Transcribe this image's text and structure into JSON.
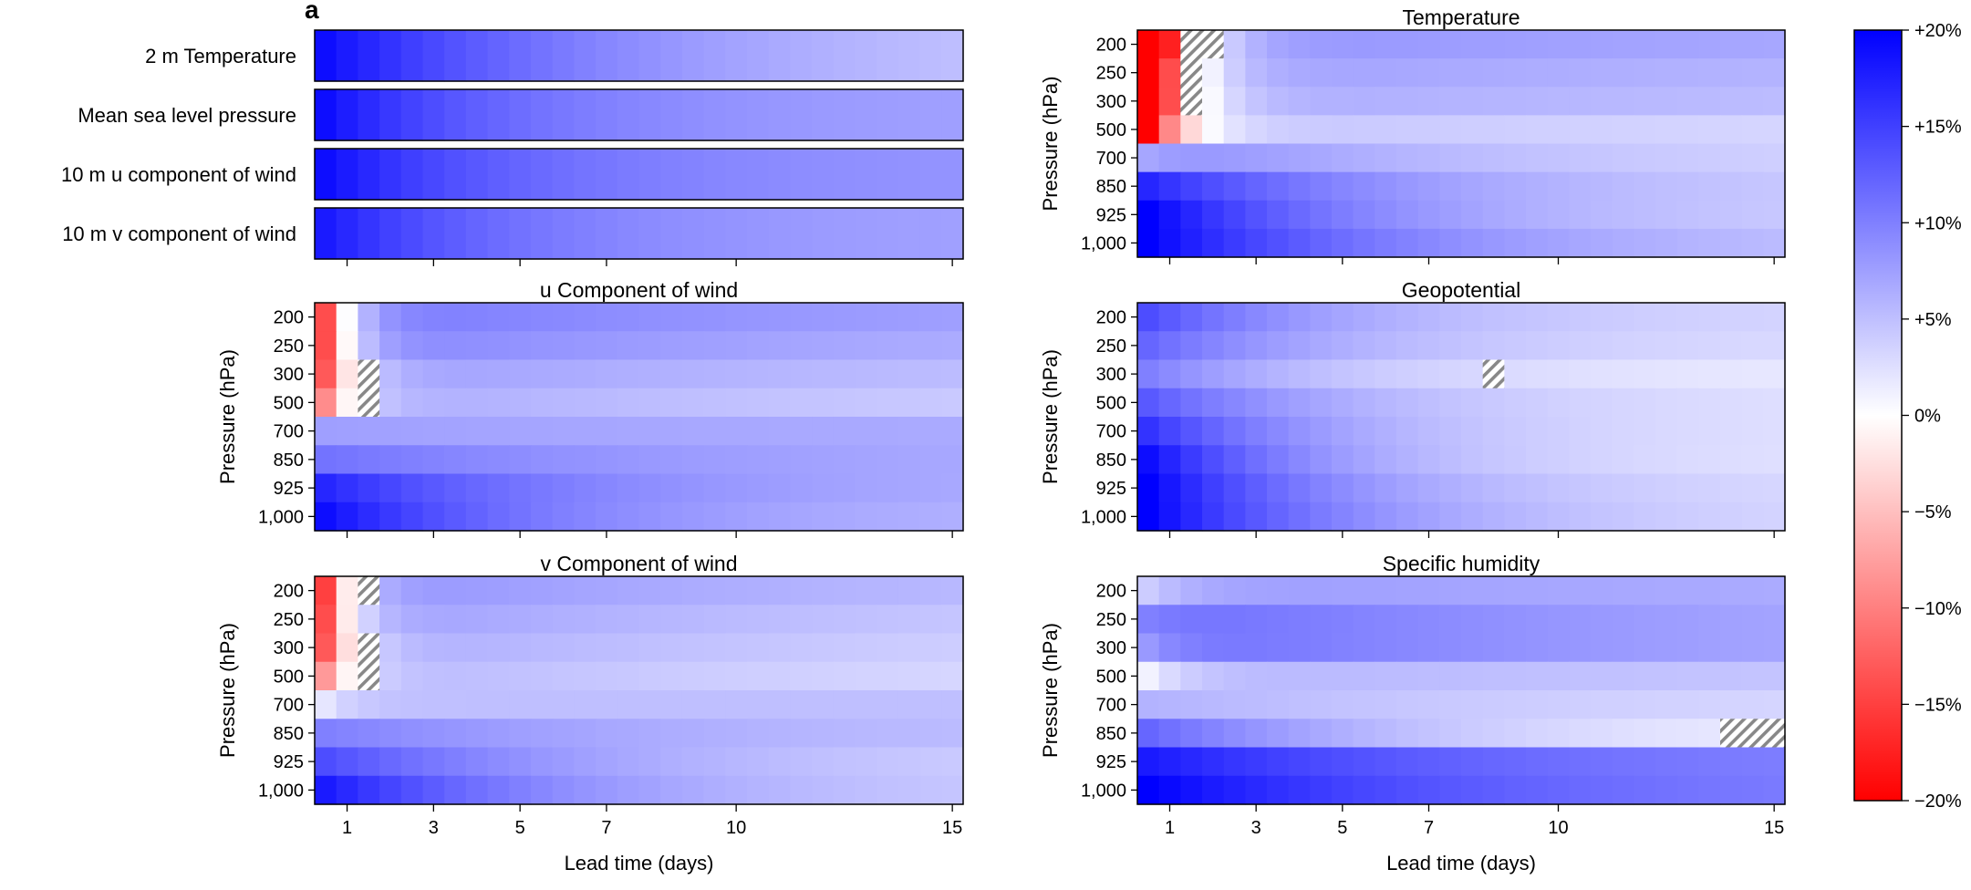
{
  "figure": {
    "panel_letter": "a",
    "xlabel": "Lead time (days)",
    "ylabel": "Pressure (hPa)",
    "x_ticks": [
      1,
      3,
      5,
      7,
      10,
      15
    ],
    "x_tick_labels": [
      "1",
      "3",
      "5",
      "7",
      "10",
      "15"
    ],
    "x_range_days": [
      0.25,
      15.25
    ],
    "n_lead_steps": 30,
    "colorbar": {
      "min": -20,
      "max": 20,
      "ticks": [
        20,
        15,
        10,
        5,
        0,
        -5,
        -10,
        -15,
        -20
      ],
      "tick_labels": [
        "+20%",
        "+15%",
        "+10%",
        "+5%",
        "0%",
        "−5%",
        "−10%",
        "−15%",
        "−20%"
      ],
      "color_low": "#ff0000",
      "color_mid": "#ffffff",
      "color_high": "#0000ff"
    },
    "hatch_color": "#888888"
  },
  "chart_data": [
    {
      "type": "heatmap",
      "id": "surface",
      "title": "",
      "rows": [
        "2 m Temperature",
        "Mean sea level pressure",
        "10 m u component of wind",
        "10 m v component of wind"
      ],
      "row_profiles": [
        {
          "early": 19,
          "late": 3,
          "decay": 0.14,
          "dip": 0,
          "dip_decay": 1,
          "hatch": []
        },
        {
          "early": 19,
          "late": 7,
          "decay": 0.22,
          "dip": 0,
          "dip_decay": 1,
          "hatch": []
        },
        {
          "early": 19,
          "late": 8,
          "decay": 0.22,
          "dip": 0,
          "dip_decay": 1,
          "hatch": []
        },
        {
          "early": 18,
          "late": 7,
          "decay": 0.22,
          "dip": 0,
          "dip_decay": 1,
          "hatch": []
        }
      ]
    },
    {
      "type": "heatmap",
      "id": "u_wind",
      "title": "u Component of wind",
      "rows": [
        "200",
        "250",
        "300",
        "500",
        "700",
        "850",
        "925",
        "1,000"
      ],
      "row_profiles": [
        {
          "early": 11,
          "late": 6,
          "decay": 0.08,
          "dip": -25,
          "dip_decay": 1.7,
          "hatch": []
        },
        {
          "early": 10,
          "late": 5,
          "decay": 0.08,
          "dip": -24,
          "dip_decay": 1.7,
          "hatch": []
        },
        {
          "early": 8,
          "late": 4,
          "decay": 0.08,
          "dip": -21,
          "dip_decay": 1.5,
          "hatch": [
            2
          ]
        },
        {
          "early": 7,
          "late": 3,
          "decay": 0.08,
          "dip": -16,
          "dip_decay": 1.5,
          "hatch": [
            2
          ]
        },
        {
          "early": 7.5,
          "late": 6.5,
          "decay": 0.12,
          "dip": 0,
          "dip_decay": 1,
          "hatch": []
        },
        {
          "early": 11,
          "late": 6,
          "decay": 0.12,
          "dip": 0,
          "dip_decay": 1,
          "hatch": []
        },
        {
          "early": 17,
          "late": 6,
          "decay": 0.18,
          "dip": 0,
          "dip_decay": 1,
          "hatch": []
        },
        {
          "early": 19,
          "late": 5.5,
          "decay": 0.2,
          "dip": 0,
          "dip_decay": 1,
          "hatch": []
        }
      ]
    },
    {
      "type": "heatmap",
      "id": "v_wind",
      "title": "v Component of wind",
      "rows": [
        "200",
        "250",
        "300",
        "500",
        "700",
        "850",
        "925",
        "1,000"
      ],
      "row_profiles": [
        {
          "early": 9,
          "late": 4,
          "decay": 0.08,
          "dip": -24,
          "dip_decay": 1.7,
          "hatch": [
            2
          ]
        },
        {
          "early": 8,
          "late": 3,
          "decay": 0.08,
          "dip": -22,
          "dip_decay": 1.7,
          "hatch": []
        },
        {
          "early": 7,
          "late": 2.5,
          "decay": 0.08,
          "dip": -20,
          "dip_decay": 1.5,
          "hatch": [
            2
          ]
        },
        {
          "early": 6,
          "late": 2,
          "decay": 0.08,
          "dip": -14,
          "dip_decay": 1.5,
          "hatch": [
            2
          ]
        },
        {
          "early": 5,
          "late": 5,
          "decay": 0.12,
          "dip": -3,
          "dip_decay": 1.5,
          "hatch": []
        },
        {
          "early": 10,
          "late": 4.5,
          "decay": 0.13,
          "dip": 0,
          "dip_decay": 1,
          "hatch": []
        },
        {
          "early": 14,
          "late": 3,
          "decay": 0.15,
          "dip": 0,
          "dip_decay": 1,
          "hatch": []
        },
        {
          "early": 18,
          "late": 3.5,
          "decay": 0.18,
          "dip": 0,
          "dip_decay": 1,
          "hatch": []
        }
      ]
    },
    {
      "type": "heatmap",
      "id": "temperature",
      "title": "Temperature",
      "rows": [
        "200",
        "250",
        "300",
        "500",
        "700",
        "850",
        "925",
        "1,000"
      ],
      "row_profiles": [
        {
          "early": 9,
          "late": 6,
          "decay": 0.08,
          "dip": -48,
          "dip_decay": 1.2,
          "hatch": [
            2,
            3
          ]
        },
        {
          "early": 8,
          "late": 5,
          "decay": 0.08,
          "dip": -40,
          "dip_decay": 1.2,
          "hatch": [
            2
          ]
        },
        {
          "early": 7,
          "late": 4.5,
          "decay": 0.08,
          "dip": -38,
          "dip_decay": 1.2,
          "hatch": [
            2
          ]
        },
        {
          "early": 5,
          "late": 2.5,
          "decay": 0.08,
          "dip": -26,
          "dip_decay": 1.2,
          "hatch": []
        },
        {
          "early": 10,
          "late": 3,
          "decay": 0.15,
          "dip": -3,
          "dip_decay": 1,
          "hatch": []
        },
        {
          "early": 17,
          "late": 3.5,
          "decay": 0.18,
          "dip": 0,
          "dip_decay": 1,
          "hatch": []
        },
        {
          "early": 20,
          "late": 3.5,
          "decay": 0.2,
          "dip": 0,
          "dip_decay": 1,
          "hatch": []
        },
        {
          "early": 20,
          "late": 4,
          "decay": 0.17,
          "dip": 0,
          "dip_decay": 1,
          "hatch": []
        }
      ]
    },
    {
      "type": "heatmap",
      "id": "geopotential",
      "title": "Geopotential",
      "rows": [
        "200",
        "250",
        "300",
        "500",
        "700",
        "850",
        "925",
        "1,000"
      ],
      "row_profiles": [
        {
          "early": 14,
          "late": 3,
          "decay": 0.22,
          "dip": 0,
          "dip_decay": 1,
          "hatch": []
        },
        {
          "early": 12,
          "late": 2.5,
          "decay": 0.2,
          "dip": 0,
          "dip_decay": 1,
          "hatch": []
        },
        {
          "early": 10,
          "late": 1.5,
          "decay": 0.22,
          "dip": 0,
          "dip_decay": 1,
          "hatch": [
            16
          ]
        },
        {
          "early": 13,
          "late": 2,
          "decay": 0.2,
          "dip": 0,
          "dip_decay": 1,
          "hatch": []
        },
        {
          "early": 16,
          "late": 2,
          "decay": 0.22,
          "dip": 0,
          "dip_decay": 1,
          "hatch": []
        },
        {
          "early": 19,
          "late": 2,
          "decay": 0.24,
          "dip": 0,
          "dip_decay": 1,
          "hatch": []
        },
        {
          "early": 20,
          "late": 2.5,
          "decay": 0.22,
          "dip": 0,
          "dip_decay": 1,
          "hatch": []
        },
        {
          "early": 20,
          "late": 2.5,
          "decay": 0.2,
          "dip": 0,
          "dip_decay": 1,
          "hatch": []
        }
      ]
    },
    {
      "type": "heatmap",
      "id": "humidity",
      "title": "Specific humidity",
      "rows": [
        "200",
        "250",
        "300",
        "500",
        "700",
        "850",
        "925",
        "1,000"
      ],
      "row_profiles": [
        {
          "early": 8,
          "late": 6,
          "decay": 0.08,
          "dip": -4,
          "dip_decay": 0.9,
          "hatch": []
        },
        {
          "early": 12,
          "late": 5,
          "decay": 0.08,
          "dip": -2,
          "dip_decay": 0.9,
          "hatch": []
        },
        {
          "early": 12,
          "late": 5,
          "decay": 0.08,
          "dip": -4,
          "dip_decay": 1.0,
          "hatch": []
        },
        {
          "early": 6,
          "late": 4,
          "decay": 0.08,
          "dip": -5,
          "dip_decay": 1.0,
          "hatch": []
        },
        {
          "early": 6,
          "late": 2.5,
          "decay": 0.1,
          "dip": 0,
          "dip_decay": 1,
          "hatch": []
        },
        {
          "early": 12,
          "late": 0.3,
          "decay": 0.15,
          "dip": 0,
          "dip_decay": 1,
          "hatch": [
            27,
            28,
            29
          ]
        },
        {
          "early": 18,
          "late": 9,
          "decay": 0.14,
          "dip": 0,
          "dip_decay": 1,
          "hatch": []
        },
        {
          "early": 20,
          "late": 9,
          "decay": 0.14,
          "dip": 0,
          "dip_decay": 1,
          "hatch": []
        }
      ]
    }
  ]
}
